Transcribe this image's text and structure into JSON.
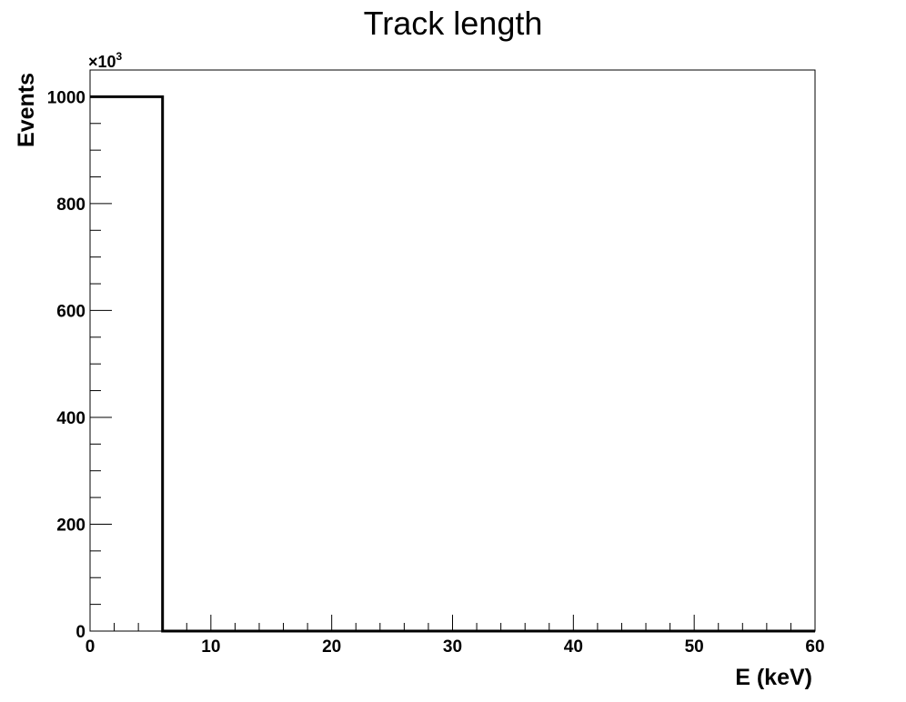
{
  "chart_data": {
    "type": "bar",
    "subtype": "step-histogram",
    "title": "Track length",
    "xlabel": "E (keV)",
    "ylabel": "Events",
    "y_multiplier_label": {
      "base": "×10",
      "exp": "3"
    },
    "xlim": [
      0,
      60
    ],
    "ylim": [
      0,
      1050
    ],
    "x_ticks": [
      0,
      10,
      20,
      30,
      40,
      50,
      60
    ],
    "y_ticks": [
      0,
      200,
      400,
      600,
      800,
      1000
    ],
    "bins": [
      {
        "x0": 0,
        "x1": 6,
        "value": 1000
      },
      {
        "x0": 6,
        "x1": 60,
        "value": 0
      }
    ],
    "grid": false,
    "legend": "none",
    "line_color": "#000000"
  }
}
